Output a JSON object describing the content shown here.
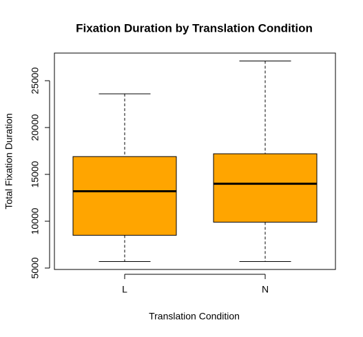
{
  "chart_data": {
    "type": "boxplot",
    "title": "Fixation Duration by Translation Condition",
    "x_label": "Translation Condition",
    "y_label": "Total Fixation Duration",
    "categories": [
      "L",
      "N"
    ],
    "boxes": [
      {
        "min": 5700,
        "q1": 8500,
        "median": 13200,
        "q3": 16900,
        "max": 23600
      },
      {
        "min": 5700,
        "q1": 9900,
        "median": 14000,
        "q3": 17200,
        "max": 27100
      }
    ],
    "color": "#ffa500",
    "ylim": [
      4850,
      27950
    ],
    "yticks": [
      5000,
      10000,
      15000,
      20000,
      25000
    ]
  }
}
